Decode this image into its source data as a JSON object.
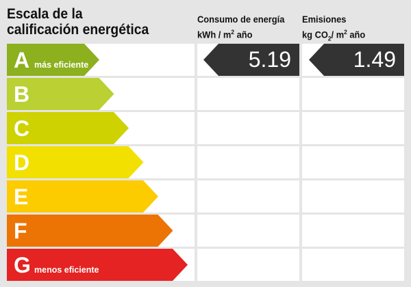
{
  "title_line1": "Escala de la",
  "title_line2": "calificación energética",
  "consumo": {
    "label": "Consumo de energía",
    "unit_pre": "kWh / m",
    "unit_sup": "2",
    "unit_post": " año",
    "value": "5.19"
  },
  "emisiones": {
    "label": "Emisiones",
    "unit_pre": "kg CO",
    "unit_sub": "2",
    "unit_mid": "/ m",
    "unit_sup": "2",
    "unit_post": " año",
    "value": "1.49"
  },
  "current_rating": "A",
  "ratings": [
    {
      "letter": "A",
      "note": "más eficiente",
      "color": "#8cb01e"
    },
    {
      "letter": "B",
      "note": "",
      "color": "#bbd032"
    },
    {
      "letter": "C",
      "note": "",
      "color": "#cdd200"
    },
    {
      "letter": "D",
      "note": "",
      "color": "#f1e000"
    },
    {
      "letter": "E",
      "note": "",
      "color": "#fccb00"
    },
    {
      "letter": "F",
      "note": "",
      "color": "#ec7404"
    },
    {
      "letter": "G",
      "note": "menos eficiente",
      "color": "#e42322"
    }
  ]
}
